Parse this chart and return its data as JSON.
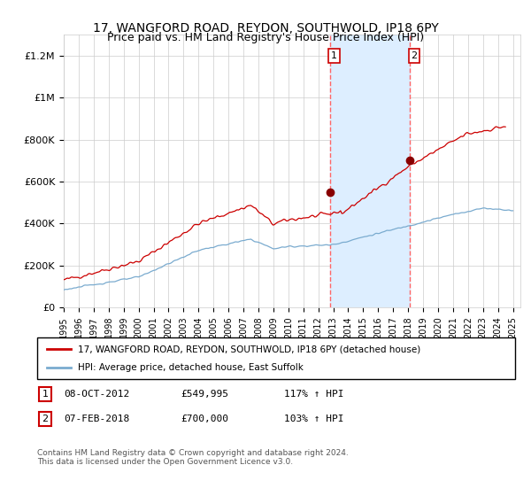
{
  "title": "17, WANGFORD ROAD, REYDON, SOUTHWOLD, IP18 6PY",
  "subtitle": "Price paid vs. HM Land Registry's House Price Index (HPI)",
  "legend_line1": "17, WANGFORD ROAD, REYDON, SOUTHWOLD, IP18 6PY (detached house)",
  "legend_line2": "HPI: Average price, detached house, East Suffolk",
  "sale1_label": "1",
  "sale1_date": "08-OCT-2012",
  "sale1_price": "£549,995",
  "sale1_hpi": "117% ↑ HPI",
  "sale1_year": 2012.77,
  "sale1_value": 549995,
  "sale2_label": "2",
  "sale2_date": "07-FEB-2018",
  "sale2_price": "£700,000",
  "sale2_hpi": "103% ↑ HPI",
  "sale2_year": 2018.1,
  "sale2_value": 700000,
  "footer": "Contains HM Land Registry data © Crown copyright and database right 2024.\nThis data is licensed under the Open Government Licence v3.0.",
  "red_line_color": "#cc0000",
  "blue_line_color": "#7aabcf",
  "shade_color": "#ddeeff",
  "dashed_line_color": "#ff6666",
  "ylim": [
    0,
    1300000
  ],
  "yticks": [
    0,
    200000,
    400000,
    600000,
    800000,
    1000000,
    1200000
  ],
  "ytick_labels": [
    "£0",
    "£200K",
    "£400K",
    "£600K",
    "£800K",
    "£1M",
    "£1.2M"
  ],
  "xmin": 1995.0,
  "xmax": 2025.5
}
